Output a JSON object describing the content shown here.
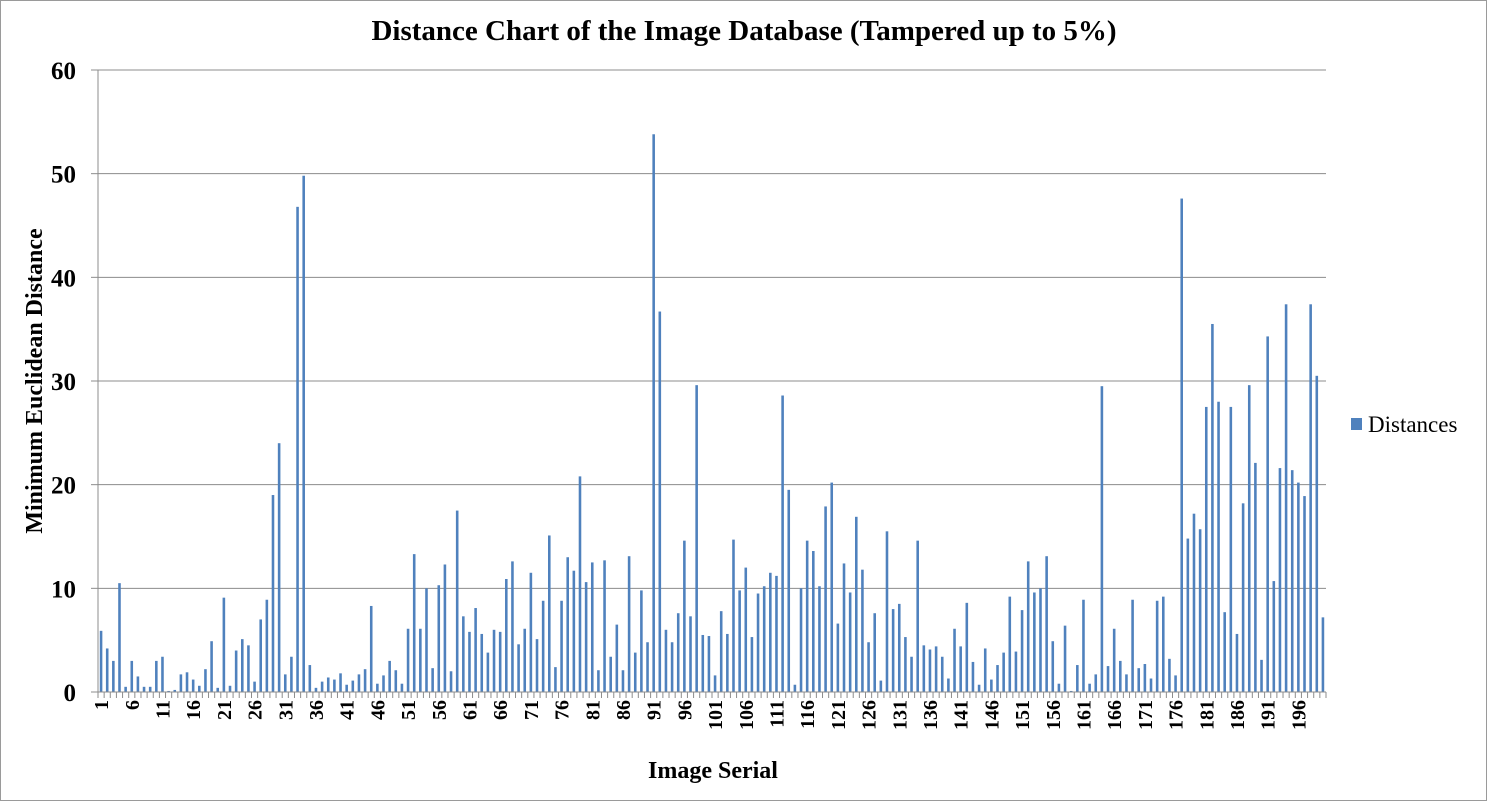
{
  "chart_data": {
    "type": "bar",
    "title": "Distance Chart of the Image Database (Tampered up to 5%)",
    "xlabel": "Image Serial",
    "ylabel": "Minimum Euclidean Distance",
    "ylim": [
      0,
      60
    ],
    "yticks": [
      0,
      10,
      20,
      30,
      40,
      50,
      60
    ],
    "xtick_labels": [
      "1",
      "6",
      "11",
      "16",
      "21",
      "26",
      "31",
      "36",
      "41",
      "46",
      "51",
      "56",
      "61",
      "66",
      "71",
      "76",
      "81",
      "86",
      "91",
      "96",
      "101",
      "106",
      "111",
      "116",
      "121",
      "126",
      "131",
      "136",
      "141",
      "146",
      "151",
      "156",
      "161",
      "166",
      "171",
      "176",
      "181",
      "186",
      "191",
      "196"
    ],
    "grid": true,
    "legend_position": "right",
    "color": "#4f81bd",
    "series": [
      {
        "name": "Distances",
        "values": [
          5.9,
          4.2,
          3.0,
          10.5,
          0.5,
          3.0,
          1.5,
          0.5,
          0.5,
          3.0,
          3.4,
          0.1,
          0.2,
          1.7,
          1.9,
          1.2,
          0.6,
          2.2,
          4.9,
          0.4,
          9.1,
          0.6,
          4.0,
          5.1,
          4.5,
          1.0,
          7.0,
          8.9,
          19.0,
          24.0,
          1.7,
          3.4,
          46.8,
          49.8,
          2.6,
          0.4,
          1.0,
          1.4,
          1.2,
          1.8,
          0.7,
          1.1,
          1.7,
          2.2,
          8.3,
          0.8,
          1.6,
          3.0,
          2.1,
          0.8,
          6.1,
          13.3,
          6.1,
          10.0,
          2.3,
          10.3,
          12.3,
          2.0,
          17.5,
          7.3,
          5.8,
          8.1,
          5.6,
          3.8,
          6.0,
          5.8,
          10.9,
          12.6,
          4.6,
          6.1,
          11.5,
          5.1,
          8.8,
          15.1,
          2.4,
          8.8,
          13.0,
          11.7,
          20.8,
          10.6,
          12.5,
          2.1,
          12.7,
          3.4,
          6.5,
          2.1,
          13.1,
          3.8,
          9.8,
          4.8,
          53.8,
          36.7,
          6.0,
          4.8,
          7.6,
          14.6,
          7.3,
          29.6,
          5.5,
          5.4,
          1.6,
          7.8,
          5.6,
          14.7,
          9.8,
          12.0,
          5.3,
          9.5,
          10.2,
          11.5,
          11.2,
          28.6,
          19.5,
          0.7,
          10.0,
          14.6,
          13.6,
          10.2,
          17.9,
          20.2,
          6.6,
          12.4,
          9.6,
          16.9,
          11.8,
          4.8,
          7.6,
          1.1,
          15.5,
          8.0,
          8.5,
          5.3,
          3.4,
          14.6,
          4.5,
          4.1,
          4.4,
          3.4,
          1.3,
          6.1,
          4.4,
          8.6,
          2.9,
          0.7,
          4.2,
          1.2,
          2.6,
          3.8,
          9.2,
          3.9,
          7.9,
          12.6,
          9.6,
          10.0,
          13.1,
          4.9,
          0.8,
          6.4,
          0.1,
          2.6,
          8.9,
          0.8,
          1.7,
          29.5,
          2.5,
          6.1,
          3.0,
          1.7,
          8.9,
          2.3,
          2.7,
          1.3,
          8.8,
          9.2,
          3.2,
          1.6,
          47.6,
          14.8,
          17.2,
          15.7,
          27.5,
          35.5,
          28.0,
          7.7,
          27.5,
          5.6,
          18.2,
          29.6,
          22.1,
          3.1,
          34.3,
          10.7,
          21.6,
          37.4,
          21.4,
          20.2,
          18.9,
          37.4,
          30.5,
          7.2
        ]
      }
    ]
  }
}
